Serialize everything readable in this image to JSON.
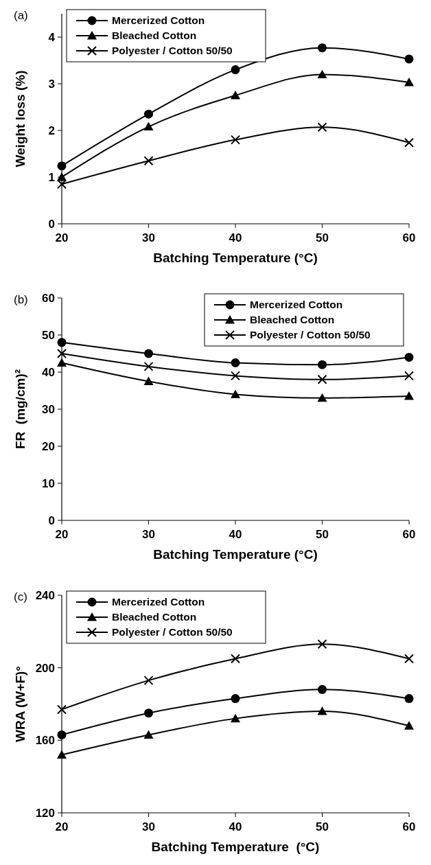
{
  "chart_data": [
    {
      "type": "line",
      "title": "(a)",
      "xlabel": "Batching Temperature (°C)",
      "ylabel": "Weight loss (%)",
      "x": [
        20,
        30,
        40,
        50,
        60
      ],
      "xlim": [
        20,
        60
      ],
      "xticks": [
        20,
        30,
        40,
        50,
        60
      ],
      "ylim": [
        0,
        4.5
      ],
      "yticks": [
        0,
        1,
        2,
        3,
        4
      ],
      "legend": "top left",
      "series": [
        {
          "name": "Mercerized Cotton",
          "color": "#000000",
          "marker": "circle",
          "values": [
            1.24,
            2.35,
            3.3,
            3.77,
            3.53
          ]
        },
        {
          "name": "Bleached Cotton",
          "color": "#000000",
          "marker": "triangle",
          "values": [
            1.0,
            2.08,
            2.75,
            3.2,
            3.03
          ]
        },
        {
          "name": "Polyester / Cotton 50/50",
          "color": "#000000",
          "marker": "cross",
          "values": [
            0.85,
            1.35,
            1.8,
            2.07,
            1.74
          ]
        }
      ]
    },
    {
      "type": "line",
      "title": "(b)",
      "xlabel": "Batching Temperature (°C)",
      "ylabel": "FR  (mg/cm)²",
      "x": [
        20,
        30,
        40,
        50,
        60
      ],
      "xlim": [
        20,
        60
      ],
      "xticks": [
        20,
        30,
        40,
        50,
        60
      ],
      "ylim": [
        0,
        60
      ],
      "yticks": [
        0,
        10,
        20,
        30,
        40,
        50,
        60
      ],
      "legend": "top right",
      "series": [
        {
          "name": "Mercerized Cotton",
          "color": "#000000",
          "marker": "circle",
          "values": [
            48,
            45,
            42.5,
            42,
            44
          ]
        },
        {
          "name": "Bleached Cotton",
          "color": "#000000",
          "marker": "triangle",
          "values": [
            42.5,
            37.5,
            34,
            33,
            33.5
          ]
        },
        {
          "name": "Polyester / Cotton 50/50",
          "color": "#000000",
          "marker": "cross",
          "values": [
            45,
            41.5,
            39,
            38,
            39
          ]
        }
      ]
    },
    {
      "type": "line",
      "title": "(c)",
      "xlabel": "Batching Temperature  (°C)",
      "ylabel": "WRA (W+F)°",
      "x": [
        20,
        30,
        40,
        50,
        60
      ],
      "xlim": [
        20,
        60
      ],
      "xticks": [
        20,
        30,
        40,
        50,
        60
      ],
      "ylim": [
        120,
        240
      ],
      "yticks": [
        120,
        160,
        200,
        240
      ],
      "legend": "top left",
      "series": [
        {
          "name": "Mercerized Cotton",
          "color": "#000000",
          "marker": "circle",
          "values": [
            163,
            175,
            183,
            188,
            183
          ]
        },
        {
          "name": "Bleached Cotton",
          "color": "#000000",
          "marker": "triangle",
          "values": [
            152,
            163,
            172,
            176,
            168
          ]
        },
        {
          "name": "Polyester / Cotton 50/50",
          "color": "#000000",
          "marker": "cross",
          "values": [
            177,
            193,
            205,
            213,
            205
          ]
        }
      ]
    }
  ]
}
